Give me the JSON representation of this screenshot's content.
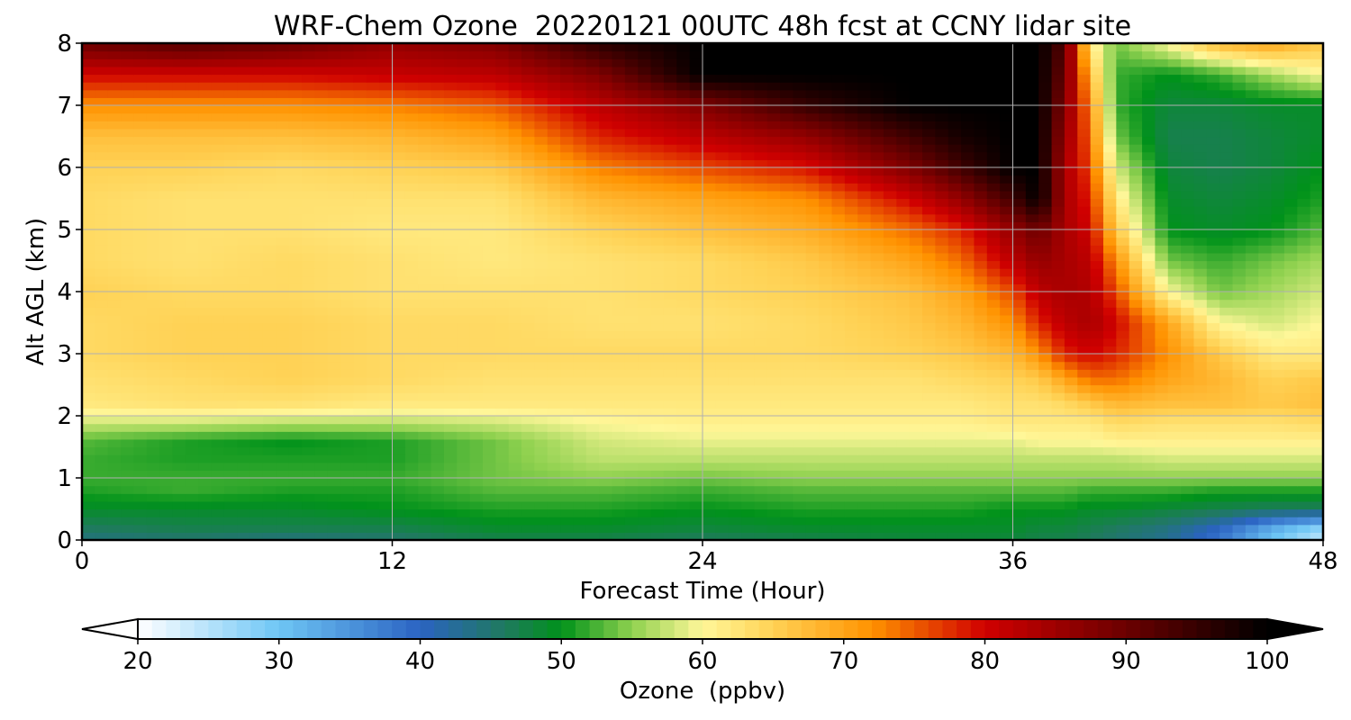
{
  "chart_data": {
    "type": "heatmap",
    "title": "WRF-Chem Ozone  20220121 00UTC 48h fcst at CCNY lidar site",
    "xlabel": "Forecast Time (Hour)",
    "ylabel": "Alt AGL (km)",
    "xlim": [
      0,
      48
    ],
    "ylim": [
      0,
      8
    ],
    "x_ticks": [
      0,
      12,
      24,
      36,
      48
    ],
    "y_ticks": [
      0,
      1,
      2,
      3,
      4,
      5,
      6,
      7,
      8
    ],
    "x_tick_labels": [
      "0",
      "12",
      "24",
      "36",
      "48"
    ],
    "y_tick_labels": [
      "0",
      "1",
      "2",
      "3",
      "4",
      "5",
      "6",
      "7",
      "8"
    ],
    "grid": true,
    "colorbar": {
      "label": "Ozone  (ppbv)",
      "orientation": "horizontal",
      "placement": "bottom",
      "range": [
        20,
        100
      ],
      "extend": "both",
      "ticks": [
        20,
        30,
        40,
        50,
        60,
        70,
        80,
        90,
        100
      ],
      "tick_labels": [
        "20",
        "30",
        "40",
        "50",
        "60",
        "70",
        "80",
        "90",
        "100"
      ],
      "colors": [
        "#ffffff",
        "#6ec6f5",
        "#2b63c2",
        "#1f7a5e",
        "#00921a",
        "#8fd14f",
        "#fff799",
        "#ffd255",
        "#ff9200",
        "#d00000",
        "#6b0000",
        "#000000"
      ],
      "color_stops": [
        20,
        30,
        40,
        46,
        50,
        55,
        60,
        65,
        72,
        80,
        90,
        100
      ]
    },
    "x": [
      0,
      4,
      8,
      12,
      16,
      20,
      24,
      28,
      32,
      34,
      36,
      37,
      38,
      39,
      40,
      42,
      44,
      46,
      48
    ],
    "y": [
      0,
      0.2,
      0.5,
      0.8,
      1.0,
      1.3,
      1.6,
      1.9,
      2.2,
      2.6,
      3.0,
      3.5,
      4.0,
      4.5,
      5.0,
      5.5,
      6.0,
      6.5,
      7.0,
      7.5,
      8.0
    ],
    "z": [
      [
        44,
        45,
        44,
        45,
        47,
        47,
        46,
        47,
        48,
        48,
        48,
        47,
        47,
        46,
        45,
        43,
        38,
        30,
        24
      ],
      [
        46,
        47,
        47,
        47,
        49,
        49,
        48,
        49,
        49,
        49,
        49,
        48,
        48,
        47,
        46,
        44,
        40,
        33,
        28
      ],
      [
        49,
        49,
        49,
        50,
        51,
        51,
        50,
        51,
        51,
        51,
        50,
        50,
        50,
        49,
        49,
        48,
        47,
        46,
        46
      ],
      [
        51,
        52,
        51,
        51,
        53,
        53,
        52,
        53,
        53,
        53,
        53,
        53,
        53,
        52,
        52,
        52,
        51,
        51,
        51
      ],
      [
        52,
        52,
        52,
        52,
        54,
        55,
        54,
        55,
        55,
        55,
        55,
        55,
        55,
        55,
        55,
        55,
        55,
        55,
        55
      ],
      [
        52,
        51,
        51,
        51,
        54,
        57,
        57,
        57,
        57,
        57,
        57,
        57,
        57,
        57,
        57,
        58,
        58,
        58,
        58
      ],
      [
        53,
        51,
        50,
        51,
        54,
        58,
        59,
        59,
        59,
        59,
        59,
        60,
        60,
        60,
        61,
        61,
        61,
        61,
        61
      ],
      [
        58,
        58,
        57,
        57,
        58,
        60,
        61,
        61,
        61,
        61,
        62,
        62,
        62,
        62,
        64,
        63,
        63,
        63,
        64
      ],
      [
        62,
        63,
        63,
        62,
        62,
        62,
        62,
        62,
        62,
        62,
        63,
        63,
        64,
        66,
        68,
        67,
        67,
        66,
        67
      ],
      [
        63,
        64,
        65,
        64,
        63,
        63,
        63,
        63,
        63,
        64,
        65,
        66,
        70,
        74,
        74,
        70,
        68,
        65,
        66
      ],
      [
        64,
        65,
        65,
        64,
        64,
        64,
        64,
        64,
        65,
        66,
        68,
        72,
        78,
        80,
        78,
        72,
        66,
        62,
        62
      ],
      [
        64,
        65,
        65,
        64,
        64,
        63,
        63,
        64,
        66,
        68,
        72,
        78,
        82,
        84,
        80,
        70,
        60,
        58,
        60
      ],
      [
        65,
        64,
        64,
        63,
        63,
        63,
        64,
        65,
        67,
        70,
        76,
        82,
        84,
        83,
        76,
        60,
        54,
        56,
        58
      ],
      [
        64,
        63,
        64,
        63,
        62,
        63,
        64,
        66,
        70,
        74,
        82,
        86,
        84,
        82,
        72,
        54,
        52,
        54,
        56
      ],
      [
        64,
        63,
        63,
        62,
        62,
        65,
        67,
        69,
        74,
        78,
        86,
        90,
        84,
        80,
        66,
        50,
        49,
        50,
        53
      ],
      [
        64,
        63,
        63,
        63,
        63,
        68,
        70,
        72,
        80,
        86,
        94,
        100,
        84,
        78,
        62,
        49,
        48,
        49,
        51
      ],
      [
        65,
        65,
        64,
        65,
        66,
        73,
        76,
        79,
        88,
        94,
        100,
        100,
        84,
        76,
        58,
        48,
        47,
        48,
        50
      ],
      [
        67,
        67,
        67,
        68,
        70,
        78,
        82,
        86,
        94,
        98,
        100,
        100,
        86,
        74,
        54,
        47,
        47,
        48,
        49
      ],
      [
        72,
        72,
        72,
        73,
        75,
        82,
        88,
        95,
        100,
        100,
        100,
        100,
        88,
        72,
        52,
        48,
        48,
        49,
        49
      ],
      [
        80,
        80,
        80,
        81,
        82,
        88,
        100,
        100,
        100,
        100,
        100,
        100,
        90,
        68,
        52,
        50,
        52,
        56,
        60
      ],
      [
        90,
        92,
        90,
        86,
        88,
        96,
        100,
        100,
        100,
        100,
        100,
        100,
        92,
        62,
        54,
        60,
        68,
        70,
        66
      ]
    ]
  }
}
